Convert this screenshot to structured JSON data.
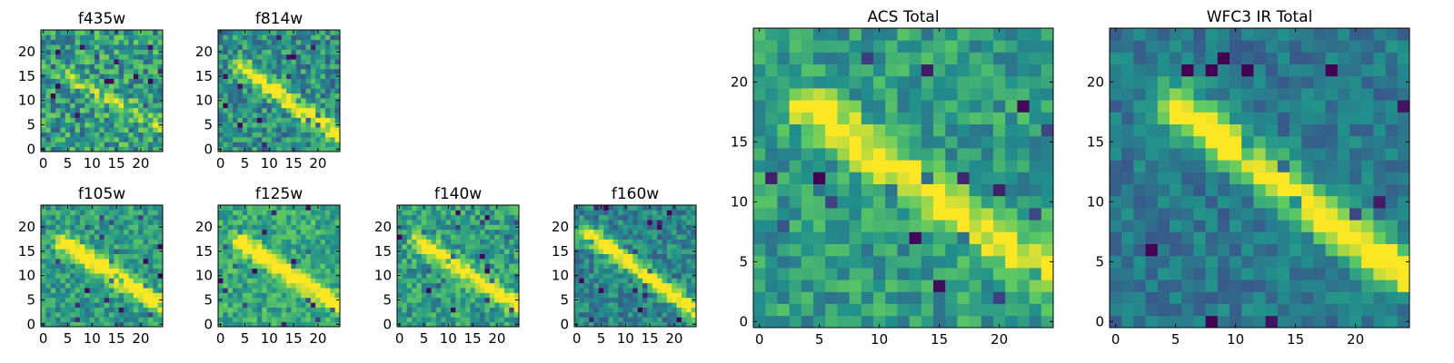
{
  "figure": {
    "colormap": "viridis",
    "colormap_stops": [
      "#440154",
      "#3b528b",
      "#21918c",
      "#5ec962",
      "#fde725"
    ]
  },
  "chart_data": [
    {
      "type": "heatmap",
      "title": "f435w",
      "grid": [
        25,
        25
      ],
      "xlim": [
        -0.5,
        24.5
      ],
      "ylim": [
        -0.5,
        24.5
      ],
      "xticks": [
        0,
        5,
        10,
        15,
        20
      ],
      "yticks": [
        0,
        5,
        10,
        15,
        20
      ],
      "noise_level": 0.5,
      "streak_strength": 0.25,
      "streak": {
        "x0": 3,
        "y0": 16,
        "x1": 24,
        "y1": 5
      },
      "background": 0.55
    },
    {
      "type": "heatmap",
      "title": "f814w",
      "grid": [
        25,
        25
      ],
      "xlim": [
        -0.5,
        24.5
      ],
      "ylim": [
        -0.5,
        24.5
      ],
      "xticks": [
        0,
        5,
        10,
        15,
        20
      ],
      "yticks": [
        0,
        5,
        10,
        15,
        20
      ],
      "noise_level": 0.45,
      "streak_strength": 0.55,
      "streak": {
        "x0": 4,
        "y0": 17,
        "x1": 24,
        "y1": 3
      },
      "background": 0.5
    },
    {
      "type": "heatmap",
      "title": "f105w",
      "grid": [
        25,
        25
      ],
      "xlim": [
        -0.5,
        24.5
      ],
      "ylim": [
        -0.5,
        24.5
      ],
      "xticks": [
        0,
        5,
        10,
        15,
        20
      ],
      "yticks": [
        0,
        5,
        10,
        15,
        20
      ],
      "noise_level": 0.35,
      "streak_strength": 0.6,
      "streak": {
        "x0": 4,
        "y0": 17,
        "x1": 24,
        "y1": 4
      },
      "background": 0.55
    },
    {
      "type": "heatmap",
      "title": "f125w",
      "grid": [
        25,
        25
      ],
      "xlim": [
        -0.5,
        24.5
      ],
      "ylim": [
        -0.5,
        24.5
      ],
      "xticks": [
        0,
        5,
        10,
        15,
        20
      ],
      "yticks": [
        0,
        5,
        10,
        15,
        20
      ],
      "noise_level": 0.35,
      "streak_strength": 0.55,
      "streak": {
        "x0": 4,
        "y0": 17,
        "x1": 24,
        "y1": 4
      },
      "background": 0.6
    },
    {
      "type": "heatmap",
      "title": "f140w",
      "grid": [
        25,
        25
      ],
      "xlim": [
        -0.5,
        24.5
      ],
      "ylim": [
        -0.5,
        24.5
      ],
      "xticks": [
        0,
        5,
        10,
        15,
        20
      ],
      "yticks": [
        0,
        5,
        10,
        15,
        20
      ],
      "noise_level": 0.4,
      "streak_strength": 0.55,
      "streak": {
        "x0": 4,
        "y0": 17,
        "x1": 24,
        "y1": 4
      },
      "background": 0.55
    },
    {
      "type": "heatmap",
      "title": "f160w",
      "grid": [
        25,
        25
      ],
      "xlim": [
        -0.5,
        24.5
      ],
      "ylim": [
        -0.5,
        24.5
      ],
      "xticks": [
        0,
        5,
        10,
        15,
        20
      ],
      "yticks": [
        0,
        5,
        10,
        15,
        20
      ],
      "noise_level": 0.35,
      "streak_strength": 0.65,
      "streak": {
        "x0": 2,
        "y0": 19,
        "x1": 24,
        "y1": 3
      },
      "background": 0.45
    },
    {
      "type": "heatmap",
      "title": "ACS Total",
      "grid": [
        25,
        25
      ],
      "xlim": [
        -0.5,
        24.5
      ],
      "ylim": [
        -0.5,
        24.5
      ],
      "xticks": [
        0,
        5,
        10,
        15,
        20
      ],
      "yticks": [
        0,
        5,
        10,
        15,
        20
      ],
      "noise_level": 0.35,
      "streak_strength": 0.5,
      "streak": {
        "x0": 4,
        "y0": 18,
        "x1": 24,
        "y1": 4
      },
      "background": 0.55
    },
    {
      "type": "heatmap",
      "title": "WFC3 IR Total",
      "grid": [
        25,
        25
      ],
      "xlim": [
        -0.5,
        24.5
      ],
      "ylim": [
        -0.5,
        24.5
      ],
      "xticks": [
        0,
        5,
        10,
        15,
        20
      ],
      "yticks": [
        0,
        5,
        10,
        15,
        20
      ],
      "noise_level": 0.25,
      "streak_strength": 0.7,
      "streak": {
        "x0": 5,
        "y0": 18,
        "x1": 24,
        "y1": 4
      },
      "background": 0.4
    }
  ]
}
